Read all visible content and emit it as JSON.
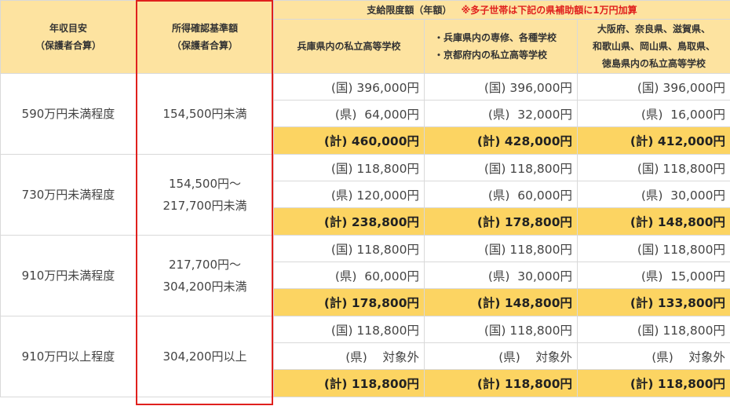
{
  "headers": {
    "income": [
      "年収目安",
      "（保護者合算）"
    ],
    "criteria": [
      "所得確認基準額",
      "（保護者合算）"
    ],
    "limit_title": "支給限度額（年額）",
    "limit_note": "※多子世帯は下記の県補助額に1万円加算",
    "col1": [
      "兵庫県内の私立高等学校"
    ],
    "col2": [
      "・兵庫県内の専修、各種学校",
      "・京都府内の私立高等学校"
    ],
    "col3": [
      "大阪府、奈良県、滋賀県、",
      "和歌山県、岡山県、鳥取県、",
      "徳島県内の私立高等学校"
    ]
  },
  "rows": [
    {
      "income": "590万円未満程度",
      "criteria": [
        "154,500円未満"
      ],
      "kuni": [
        "(国) 396,000円",
        "(国) 396,000円",
        "(国) 396,000円"
      ],
      "ken": [
        "(県)  64,000円",
        "(県)  32,000円",
        "(県)  16,000円"
      ],
      "kei": [
        "(計) 460,000円",
        "(計) 428,000円",
        "(計) 412,000円"
      ]
    },
    {
      "income": "730万円未満程度",
      "criteria": [
        "154,500円〜",
        "217,700円未満"
      ],
      "kuni": [
        "(国) 118,800円",
        "(国) 118,800円",
        "(国) 118,800円"
      ],
      "ken": [
        "(県) 120,000円",
        "(県)  60,000円",
        "(県)  30,000円"
      ],
      "kei": [
        "(計) 238,800円",
        "(計) 178,800円",
        "(計) 148,800円"
      ]
    },
    {
      "income": "910万円未満程度",
      "criteria": [
        "217,700円〜",
        "304,200円未満"
      ],
      "kuni": [
        "(国) 118,800円",
        "(国) 118,800円",
        "(国) 118,800円"
      ],
      "ken": [
        "(県)  60,000円",
        "(県)  30,000円",
        "(県)  15,000円"
      ],
      "kei": [
        "(計) 178,800円",
        "(計) 148,800円",
        "(計) 133,800円"
      ]
    },
    {
      "income": "910万円以上程度",
      "criteria": [
        "304,200円以上"
      ],
      "kuni": [
        "(国) 118,800円",
        "(国) 118,800円",
        "(国) 118,800円"
      ],
      "ken": [
        "(県)    対象外",
        "(県)    対象外",
        "(県)    対象外"
      ],
      "kei": [
        "(計) 118,800円",
        "(計) 118,800円",
        "(計) 118,800円"
      ]
    }
  ],
  "colors": {
    "header": "#fde3a0",
    "total": "#fcd462",
    "highlight": "#e0201d"
  }
}
